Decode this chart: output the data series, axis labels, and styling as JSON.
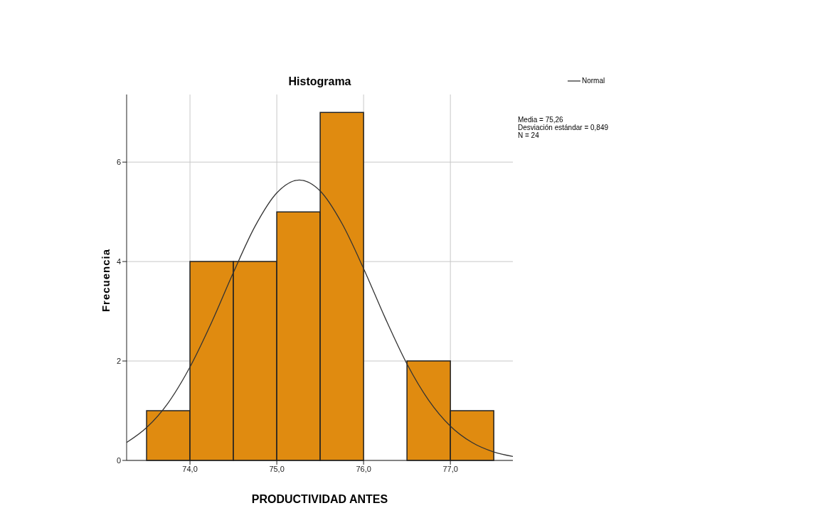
{
  "chart_data": {
    "type": "histogram",
    "title": "Histograma",
    "xlabel": "PRODUCTIVIDAD ANTES",
    "ylabel": "Frecuencia",
    "bins": [
      73.5,
      74.0,
      74.5,
      75.0,
      75.5,
      76.0,
      76.5,
      77.0,
      77.5
    ],
    "values": [
      1,
      4,
      4,
      5,
      7,
      0,
      2,
      1
    ],
    "color": "#e08b10",
    "series": [
      {
        "type": "line",
        "name": "Normal",
        "color": "#333333",
        "x": [
          73.27,
          73.5,
          73.75,
          74.0,
          74.25,
          74.5,
          74.75,
          75.0,
          75.26,
          75.5,
          75.75,
          76.0,
          76.25,
          76.5,
          76.75,
          77.0,
          77.25,
          77.5,
          77.72
        ],
        "values": [
          0.36,
          0.66,
          1.16,
          1.88,
          2.78,
          3.78,
          4.71,
          5.38,
          5.64,
          5.42,
          4.77,
          3.86,
          2.86,
          1.94,
          1.21,
          0.69,
          0.36,
          0.17,
          0.08
        ]
      }
    ],
    "xlim": [
      73.27,
      77.72
    ],
    "ylim": [
      0,
      7.36
    ],
    "xticks": [
      {
        "value": 74,
        "label": "74,0"
      },
      {
        "value": 75,
        "label": "75,0"
      },
      {
        "value": 76,
        "label": "76,0"
      },
      {
        "value": 77,
        "label": "77,0"
      }
    ],
    "yticks": [
      0,
      2,
      4,
      6
    ],
    "grid": true,
    "legend": "top right",
    "annotations": [
      "Media = 75,26",
      "Desviación estándar = 0,849",
      "N = 24"
    ]
  }
}
